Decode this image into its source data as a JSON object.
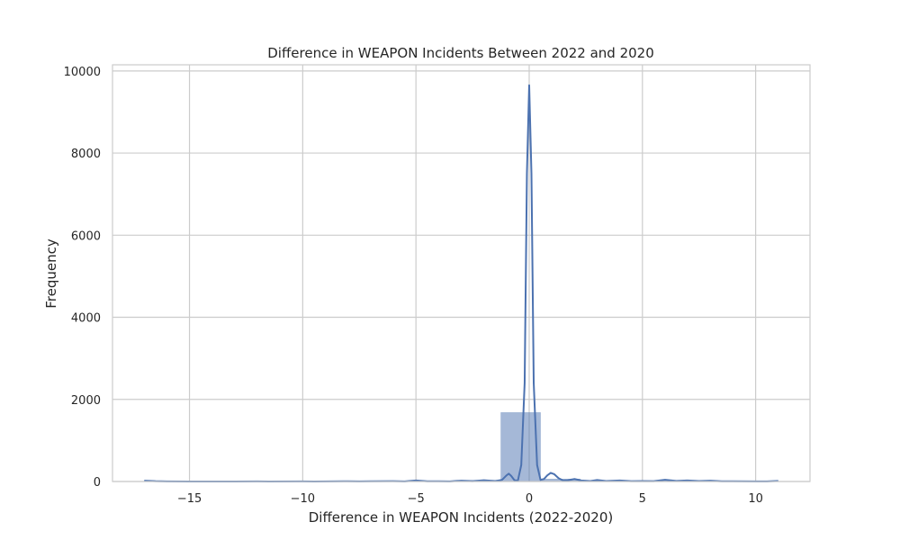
{
  "chart_data": {
    "type": "histogram",
    "title": "Difference in WEAPON Incidents Between 2022 and 2020",
    "xlabel": "Difference in WEAPON Incidents (2022-2020)",
    "ylabel": "Frequency",
    "xlim": [
      -18.4,
      12.4
    ],
    "ylim": [
      0,
      10150
    ],
    "x_ticks": [
      -15,
      -10,
      -5,
      0,
      5,
      10
    ],
    "x_tick_labels": [
      "−15",
      "−10",
      "−5",
      "0",
      "5",
      "10"
    ],
    "y_ticks": [
      0,
      2000,
      4000,
      6000,
      8000,
      10000
    ],
    "y_tick_labels": [
      "0",
      "2000",
      "4000",
      "6000",
      "8000",
      "10000"
    ],
    "grid": true,
    "bar_color": "#4c72b0",
    "bar_opacity": 0.5,
    "line_color": "#4c72b0",
    "bins": [
      {
        "x0": -17.0,
        "x1": -15.25,
        "count": 5
      },
      {
        "x0": -15.25,
        "x1": -13.5,
        "count": 0
      },
      {
        "x0": -13.5,
        "x1": -11.75,
        "count": 2
      },
      {
        "x0": -11.75,
        "x1": -10.0,
        "count": 3
      },
      {
        "x0": -10.0,
        "x1": -8.25,
        "count": 3
      },
      {
        "x0": -8.25,
        "x1": -6.5,
        "count": 6
      },
      {
        "x0": -6.5,
        "x1": -4.75,
        "count": 12
      },
      {
        "x0": -4.75,
        "x1": -3.0,
        "count": 15
      },
      {
        "x0": -3.0,
        "x1": -1.25,
        "count": 30
      },
      {
        "x0": -1.25,
        "x1": 0.5,
        "count": 1680
      },
      {
        "x0": 0.5,
        "x1": 2.25,
        "count": 60
      },
      {
        "x0": 2.25,
        "x1": 4.0,
        "count": 25
      },
      {
        "x0": 4.0,
        "x1": 5.75,
        "count": 12
      },
      {
        "x0": 5.75,
        "x1": 7.5,
        "count": 15
      },
      {
        "x0": 7.5,
        "x1": 9.25,
        "count": 8
      },
      {
        "x0": 9.25,
        "x1": 11.0,
        "count": 5
      }
    ],
    "kde": [
      [
        -17,
        20
      ],
      [
        -16.5,
        8
      ],
      [
        -16,
        2
      ],
      [
        -15,
        1
      ],
      [
        -13,
        1
      ],
      [
        -12,
        4
      ],
      [
        -11.5,
        1
      ],
      [
        -10,
        4
      ],
      [
        -9.5,
        1
      ],
      [
        -8,
        6
      ],
      [
        -7.5,
        2
      ],
      [
        -7,
        5
      ],
      [
        -6,
        8
      ],
      [
        -5.5,
        4
      ],
      [
        -5,
        25
      ],
      [
        -4.5,
        5
      ],
      [
        -4,
        6
      ],
      [
        -3.5,
        4
      ],
      [
        -3,
        20
      ],
      [
        -2.5,
        8
      ],
      [
        -2,
        30
      ],
      [
        -1.5,
        10
      ],
      [
        -1.2,
        40
      ],
      [
        -1.0,
        150
      ],
      [
        -0.9,
        190
      ],
      [
        -0.8,
        140
      ],
      [
        -0.65,
        30
      ],
      [
        -0.5,
        20
      ],
      [
        -0.35,
        400
      ],
      [
        -0.2,
        2400
      ],
      [
        -0.1,
        7500
      ],
      [
        0,
        9650
      ],
      [
        0.1,
        7500
      ],
      [
        0.2,
        2400
      ],
      [
        0.35,
        400
      ],
      [
        0.5,
        40
      ],
      [
        0.65,
        60
      ],
      [
        0.8,
        150
      ],
      [
        0.95,
        210
      ],
      [
        1.1,
        180
      ],
      [
        1.3,
        80
      ],
      [
        1.5,
        25
      ],
      [
        1.7,
        30
      ],
      [
        2.0,
        60
      ],
      [
        2.3,
        25
      ],
      [
        2.7,
        10
      ],
      [
        3.0,
        35
      ],
      [
        3.4,
        10
      ],
      [
        4.0,
        25
      ],
      [
        4.5,
        8
      ],
      [
        5.0,
        12
      ],
      [
        5.5,
        8
      ],
      [
        6.0,
        40
      ],
      [
        6.5,
        15
      ],
      [
        7.0,
        25
      ],
      [
        7.5,
        10
      ],
      [
        8.0,
        20
      ],
      [
        8.5,
        6
      ],
      [
        9.0,
        6
      ],
      [
        10.0,
        4
      ],
      [
        10.5,
        3
      ],
      [
        11.0,
        15
      ]
    ]
  }
}
